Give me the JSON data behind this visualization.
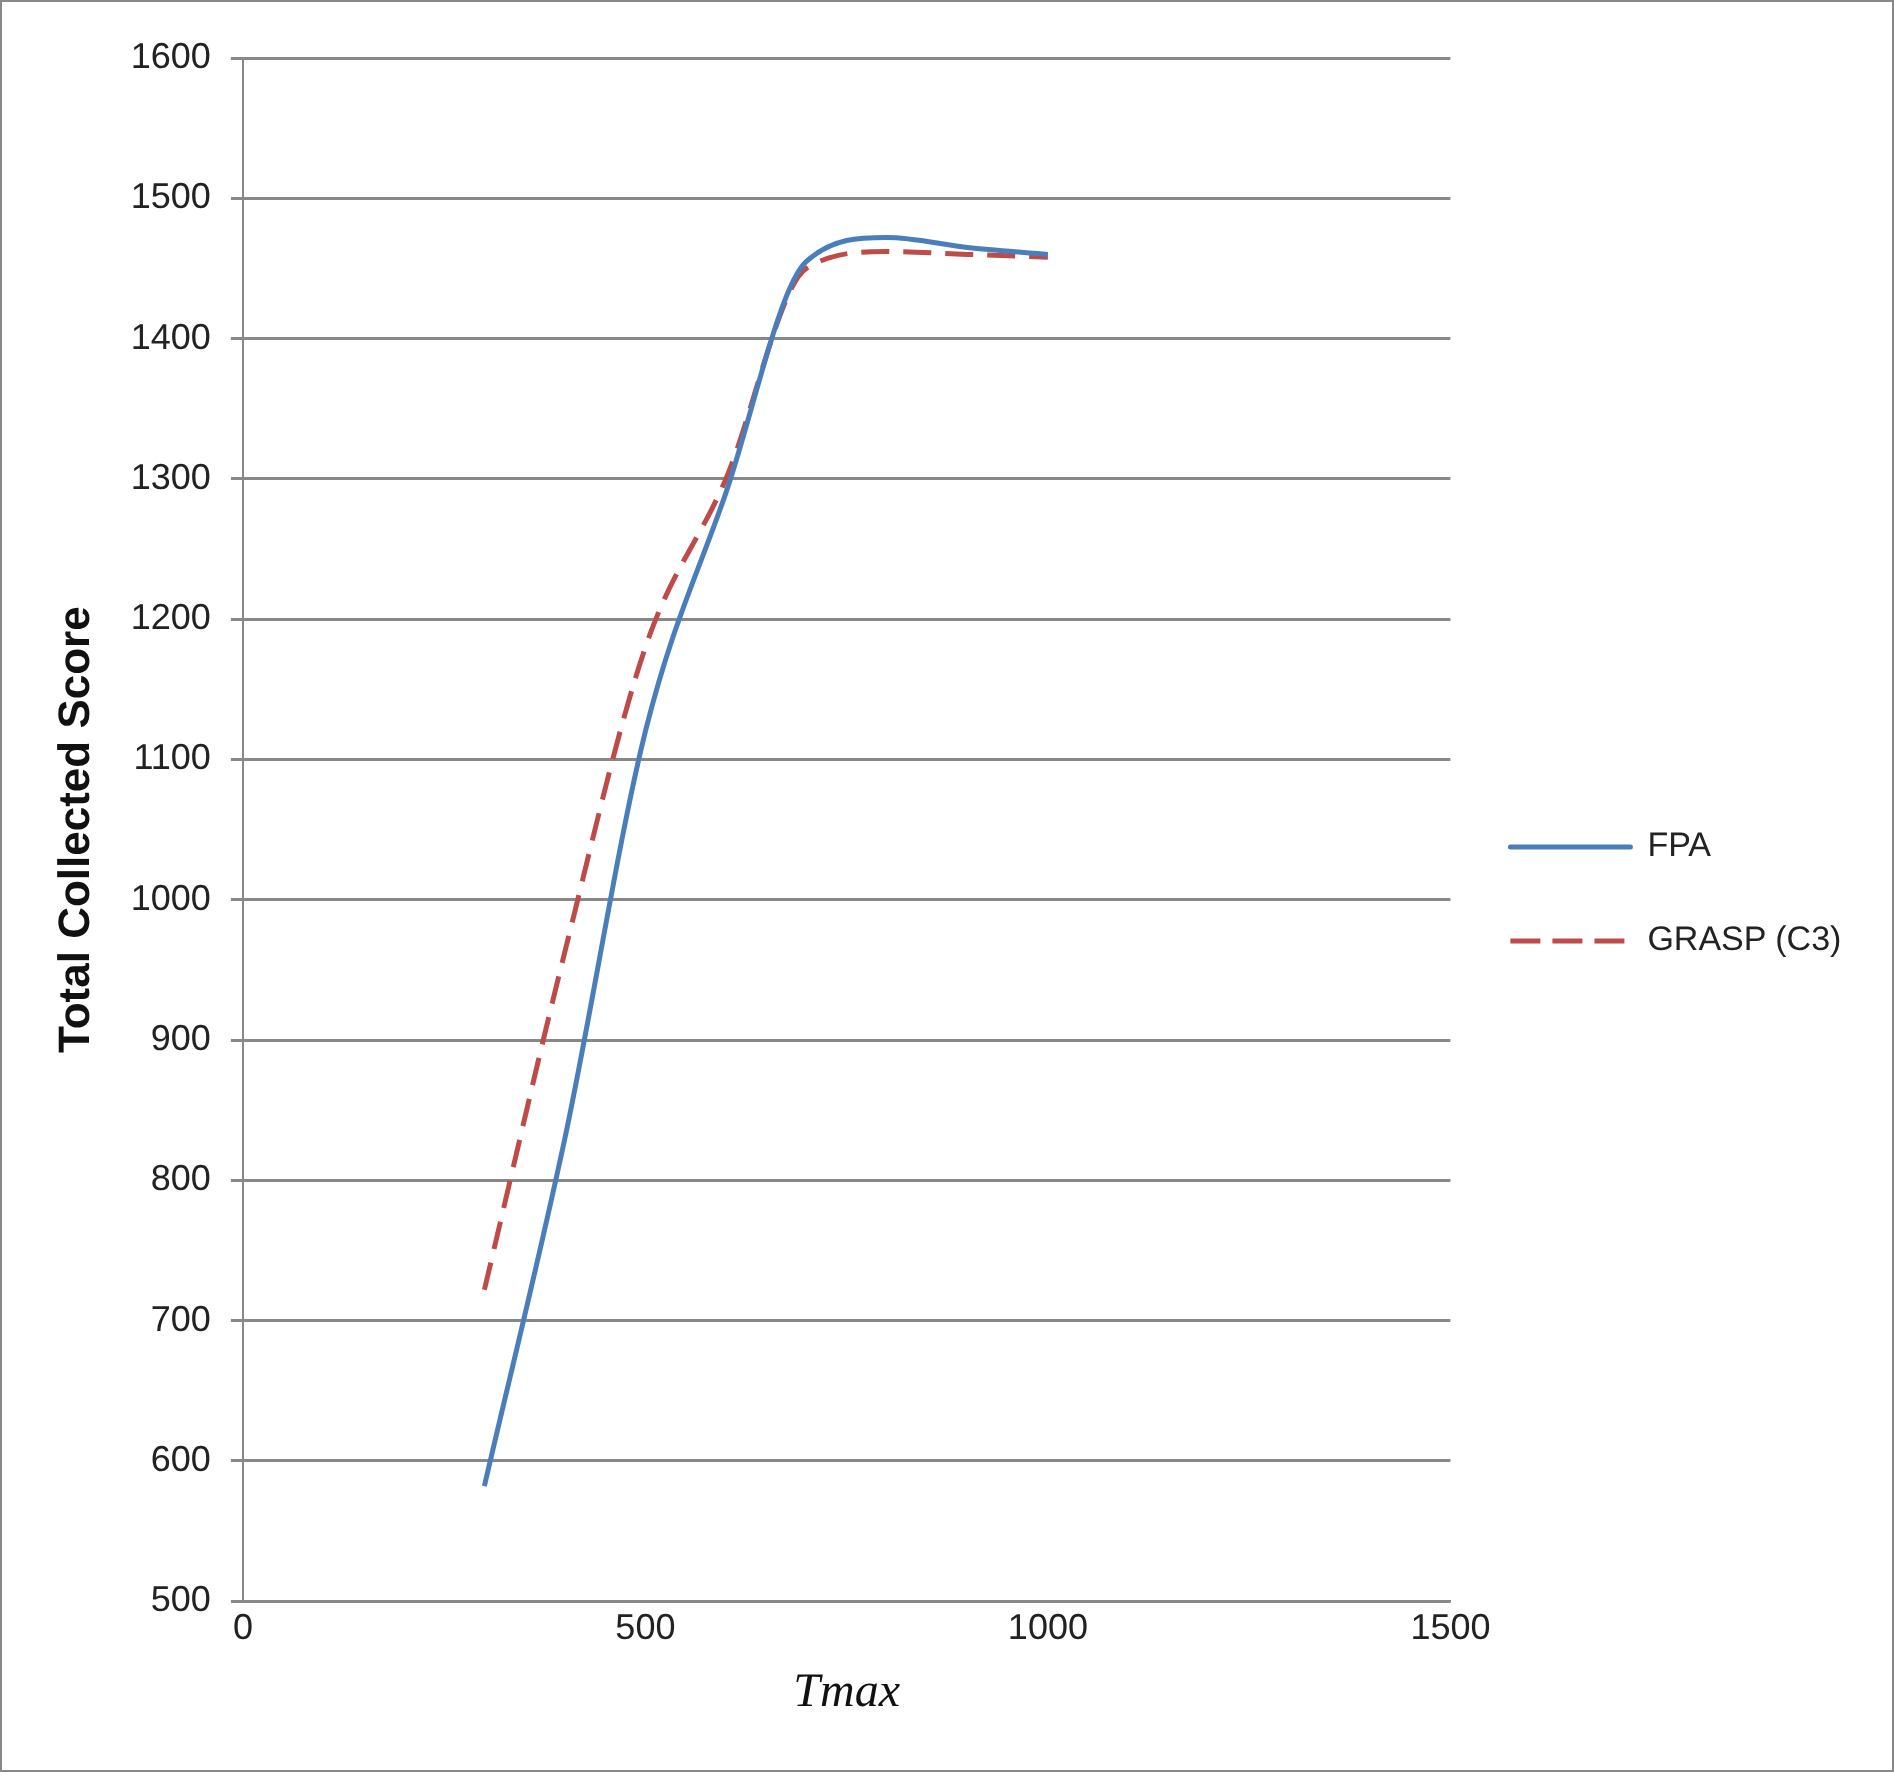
{
  "chart_data": {
    "type": "line",
    "xlabel": "Tmax",
    "ylabel": "Total Collected Score",
    "x": [
      300,
      400,
      500,
      600,
      700,
      800,
      900,
      1000
    ],
    "series": [
      {
        "name": "FPA",
        "color": "#4a7ebb",
        "line_style": "solid",
        "values": [
          582,
          830,
          1120,
          1290,
          1455,
          1472,
          1465,
          1460
        ]
      },
      {
        "name": "GRASP (C3)",
        "color": "#be4b48",
        "line_style": "dashed",
        "values": [
          722,
          963,
          1180,
          1300,
          1450,
          1462,
          1460,
          1458
        ]
      }
    ],
    "xlim": [
      0,
      1500
    ],
    "xticks": [
      0,
      500,
      1000,
      1500
    ],
    "ylim": [
      500,
      1600
    ],
    "yticks": [
      500,
      600,
      700,
      800,
      900,
      1000,
      1100,
      1200,
      1300,
      1400,
      1500,
      1600
    ],
    "grid": "y",
    "legend": "right",
    "marker": "none"
  }
}
